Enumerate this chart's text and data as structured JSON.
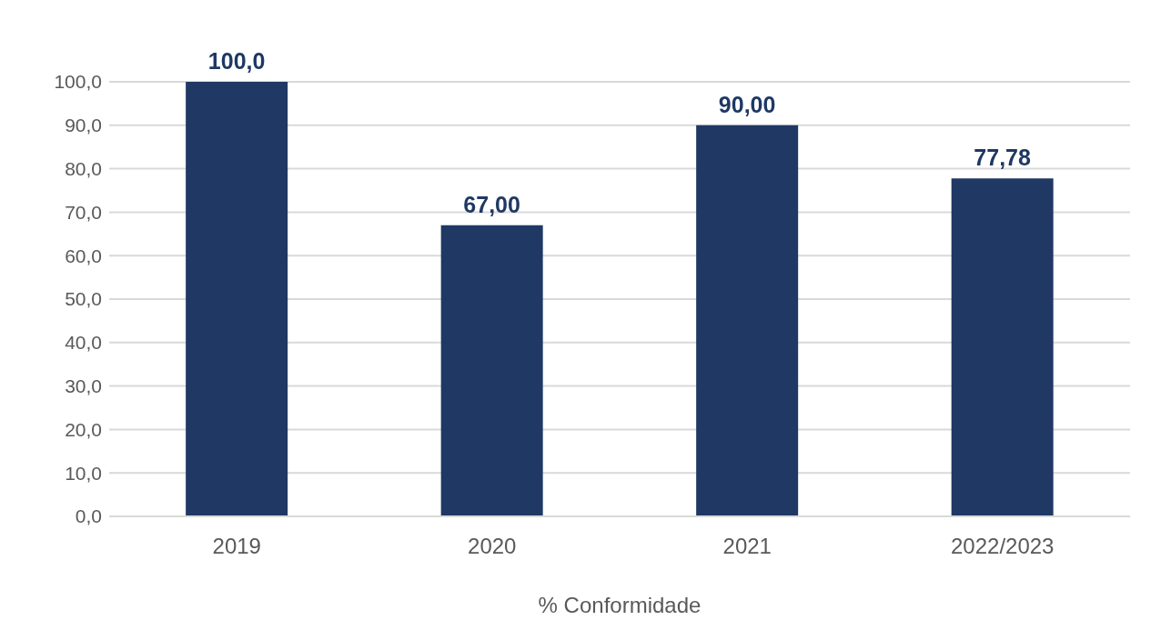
{
  "chart_data": {
    "type": "bar",
    "xlabel": "% Conformidade",
    "categories": [
      "2019",
      "2020",
      "2021",
      "2022/2023"
    ],
    "values": [
      100,
      67,
      90,
      77.78
    ],
    "value_labels": [
      "100,0",
      "67,00",
      "90,00",
      "77,78"
    ],
    "color": "#1f3864",
    "ylim": [
      0,
      100
    ],
    "yticks": [
      {
        "value": 0,
        "label": "0,0"
      },
      {
        "value": 10,
        "label": "10,0"
      },
      {
        "value": 20,
        "label": "20,0"
      },
      {
        "value": 30,
        "label": "30,0"
      },
      {
        "value": 40,
        "label": "40,0"
      },
      {
        "value": 50,
        "label": "50,0"
      },
      {
        "value": 60,
        "label": "60,0"
      },
      {
        "value": 70,
        "label": "70,0"
      },
      {
        "value": 80,
        "label": "80,0"
      },
      {
        "value": 90,
        "label": "90,0"
      },
      {
        "value": 100,
        "label": "100,0"
      }
    ],
    "grid": "y",
    "legend": false
  }
}
